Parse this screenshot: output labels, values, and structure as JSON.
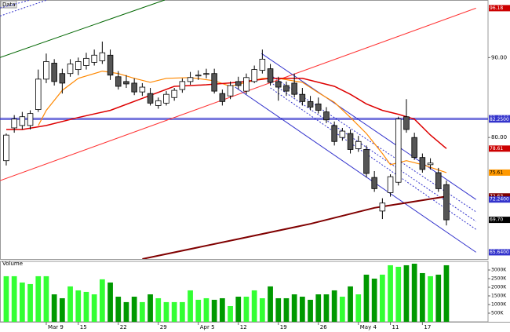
{
  "chart_data": {
    "type": "candlestick",
    "panel_label": "Data",
    "volume_label": "Volume",
    "categories": [
      null,
      null,
      null,
      null,
      null,
      "Mar 9",
      null,
      null,
      null,
      "15",
      null,
      null,
      null,
      null,
      "22",
      null,
      null,
      null,
      null,
      "29",
      null,
      null,
      null,
      null,
      "Apr 5",
      null,
      null,
      null,
      null,
      "12",
      null,
      null,
      null,
      null,
      "19",
      null,
      null,
      null,
      null,
      "26",
      null,
      null,
      null,
      null,
      "May 4",
      null,
      null,
      null,
      "11",
      null,
      null,
      null,
      "17",
      null,
      null,
      null
    ],
    "open": [
      77.1,
      81.2,
      81.5,
      81.5,
      83.5,
      87.3,
      89.3,
      88.0,
      88.0,
      88.5,
      89.0,
      89.4,
      89.6,
      90.3,
      87.6,
      87.0,
      86.8,
      85.7,
      85.5,
      84.0,
      84.3,
      85.0,
      86.0,
      87.0,
      87.7,
      87.9,
      88.0,
      85.5,
      85.2,
      87.0,
      85.8,
      87.0,
      88.4,
      88.6,
      87.0,
      86.5,
      86.8,
      85.4,
      84.5,
      84.2,
      83.2,
      81.5,
      80.0,
      80.5,
      78.6,
      78.5,
      75.0,
      70.8,
      73.1,
      74.4,
      82.6,
      80.0,
      77.5,
      76.6,
      75.6,
      74.1
    ],
    "high": [
      80.5,
      82.8,
      83.2,
      83.4,
      88.5,
      90.5,
      89.8,
      88.6,
      89.8,
      90.0,
      90.6,
      91.0,
      92.0,
      91.0,
      88.3,
      87.8,
      87.4,
      86.8,
      86.2,
      85.0,
      85.8,
      86.2,
      87.4,
      88.2,
      88.4,
      88.6,
      88.6,
      86.0,
      87.0,
      87.6,
      88.0,
      89.0,
      91.0,
      89.2,
      87.6,
      87.0,
      88.0,
      86.2,
      85.2,
      85.0,
      83.8,
      82.0,
      81.2,
      81.0,
      80.2,
      79.0,
      75.8,
      72.4,
      75.4,
      82.6,
      84.8,
      80.6,
      78.0,
      77.4,
      76.2,
      74.6
    ],
    "low": [
      76.5,
      80.6,
      81.0,
      81.0,
      83.2,
      86.8,
      86.5,
      85.5,
      87.6,
      87.8,
      88.5,
      89.0,
      89.2,
      87.2,
      86.0,
      86.2,
      85.3,
      85.2,
      84.0,
      83.6,
      84.0,
      84.6,
      85.6,
      86.6,
      87.2,
      87.4,
      85.5,
      84.0,
      84.8,
      86.0,
      85.4,
      86.8,
      88.0,
      86.5,
      84.6,
      85.2,
      85.0,
      84.0,
      83.4,
      83.0,
      81.8,
      79.0,
      79.6,
      78.0,
      78.2,
      75.0,
      73.2,
      69.8,
      72.6,
      74.0,
      80.6,
      77.2,
      75.6,
      76.0,
      73.2,
      69.0
    ],
    "close": [
      80.3,
      82.3,
      82.6,
      83.0,
      87.3,
      89.5,
      87.0,
      86.8,
      89.2,
      89.5,
      89.9,
      90.3,
      90.6,
      87.8,
      86.4,
      86.7,
      85.7,
      86.3,
      84.3,
      84.6,
      85.4,
      85.9,
      87.0,
      87.5,
      87.8,
      88.0,
      85.8,
      84.5,
      86.5,
      86.5,
      87.5,
      88.5,
      89.8,
      86.9,
      86.3,
      85.8,
      85.4,
      84.5,
      83.8,
      83.4,
      82.2,
      79.5,
      80.8,
      78.5,
      79.5,
      75.5,
      73.6,
      71.8,
      75.1,
      82.3,
      81.0,
      77.5,
      76.0,
      76.8,
      73.6,
      69.7
    ],
    "volume": [
      2640,
      2640,
      2275,
      2185,
      2640,
      2640,
      1590,
      1365,
      2050,
      1820,
      1730,
      1590,
      2460,
      2275,
      1455,
      1140,
      1455,
      1140,
      1590,
      1365,
      1140,
      1140,
      1140,
      1820,
      1275,
      1365,
      1275,
      1365,
      910,
      1455,
      1455,
      1820,
      1365,
      2050,
      1365,
      1365,
      1590,
      1455,
      1275,
      1590,
      1590,
      1820,
      1455,
      2050,
      1590,
      2730,
      2500,
      2730,
      3275,
      3185,
      3275,
      3365,
      2820,
      2640,
      2730,
      3275
    ],
    "xlim": [
      -0.78,
      60.2
    ],
    "ylim": [
      64.8,
      97.2
    ],
    "yticks": [
      {
        "value": 90,
        "label": "90.00"
      },
      {
        "value": 80,
        "label": "80.00"
      }
    ],
    "volume_ylim": [
      0,
      3500
    ],
    "volume_ticks": [
      {
        "value": 3000,
        "label": "3000K"
      },
      {
        "value": 2500,
        "label": "2500K"
      },
      {
        "value": 2000,
        "label": "2000K"
      },
      {
        "value": 1500,
        "label": "1500K"
      },
      {
        "value": 1000,
        "label": "1000K"
      },
      {
        "value": 500,
        "label": "500K"
      }
    ],
    "up_color": "#ffffff",
    "down_color": "#555555",
    "volume_up_color": "#33ff33",
    "volume_down_color": "#009900",
    "overlays": [
      {
        "color": "#ff3333",
        "width": 1,
        "dash": false,
        "x": [
          -0.78,
          58.7
        ],
        "values": [
          74.6,
          96.18
        ]
      },
      {
        "color": "#006600",
        "width": 1,
        "dash": false,
        "x": [
          -0.78,
          19.8
        ],
        "values": [
          90,
          97.2
        ]
      },
      {
        "color": "#3333cc",
        "width": 1,
        "dash": true,
        "x": [
          -0.78,
          5.1
        ],
        "values": [
          95.2,
          97.2
        ]
      },
      {
        "color": "#3333cc",
        "width": 1,
        "dash": true,
        "x": [
          -0.78,
          3
        ],
        "values": [
          96.2,
          97.2
        ]
      },
      {
        "color": "#3333cc",
        "width": 1,
        "dash": false,
        "x": [
          31.9,
          58.7
        ],
        "values": [
          90.5,
          72.24
        ]
      },
      {
        "color": "#3333cc",
        "width": 1,
        "dash": false,
        "x": [
          28.6,
          58.7
        ],
        "values": [
          86.3,
          65.64
        ]
      },
      {
        "color": "#3333cc",
        "width": 1,
        "dash": true,
        "x": [
          33,
          58.7
        ],
        "values": [
          87.8,
          70.7
        ]
      },
      {
        "color": "#3333cc",
        "width": 1,
        "dash": true,
        "x": [
          33,
          58.7
        ],
        "values": [
          86.9,
          69.5
        ]
      },
      {
        "color": "#3333cc",
        "width": 1,
        "dash": true,
        "x": [
          33,
          58.7
        ],
        "values": [
          86.2,
          68.5
        ]
      },
      {
        "color": "#ff8800",
        "width": 1.2,
        "dash": false,
        "x": [
          4,
          5,
          7,
          9,
          12,
          14,
          16,
          18,
          20,
          23,
          26,
          28,
          30,
          32,
          34,
          37,
          39,
          41,
          43,
          45,
          47,
          48,
          50,
          52,
          55
        ],
        "values": [
          81.5,
          83.4,
          85.9,
          87.4,
          88.3,
          88.0,
          87.4,
          86.9,
          87.4,
          87.5,
          87.1,
          86.4,
          86.9,
          87.4,
          87.4,
          86.9,
          85.6,
          84.4,
          82.5,
          80.5,
          78.0,
          76.6,
          77.1,
          76.6,
          75.61
        ]
      },
      {
        "color": "#dd0000",
        "width": 1.5,
        "dash": false,
        "x": [
          0,
          2,
          5,
          9,
          13,
          17,
          21,
          25,
          29,
          33,
          37,
          39,
          41,
          43,
          45,
          47,
          49,
          51,
          53,
          55
        ],
        "values": [
          81.0,
          81.0,
          81.5,
          82.5,
          83.4,
          84.9,
          86.4,
          86.6,
          86.9,
          87.4,
          87.4,
          86.9,
          86.4,
          85.4,
          84.2,
          83.4,
          82.9,
          82.3,
          80.3,
          78.61
        ]
      },
      {
        "color": "#800000",
        "width": 2,
        "dash": false,
        "x": [
          17,
          29,
          38,
          46,
          55
        ],
        "values": [
          64.8,
          67.3,
          69.2,
          71.2,
          72.63
        ]
      }
    ],
    "hlines": [
      {
        "value": 82.41,
        "color": "#3333cc"
      },
      {
        "value": 82.25,
        "color": "#3333cc"
      }
    ],
    "price_labels": [
      {
        "value": 96.18,
        "label": "96.18",
        "color": "#cc0000"
      },
      {
        "value": 82.41,
        "label": "82.4100",
        "color": "#3333cc"
      },
      {
        "value": 82.25,
        "label": "82.2500",
        "color": "#3333cc"
      },
      {
        "value": 78.61,
        "label": "78.61",
        "color": "#cc0000"
      },
      {
        "value": 75.61,
        "label": "75.61",
        "color": "#ff9900"
      },
      {
        "value": 72.63,
        "label": "72.63",
        "color": "#800000"
      },
      {
        "value": 72.24,
        "label": "72.2400",
        "color": "#3333cc"
      },
      {
        "value": 69.7,
        "label": "69.70",
        "color": "#000000"
      },
      {
        "value": 65.64,
        "label": "65.6400",
        "color": "#3333cc"
      }
    ]
  }
}
